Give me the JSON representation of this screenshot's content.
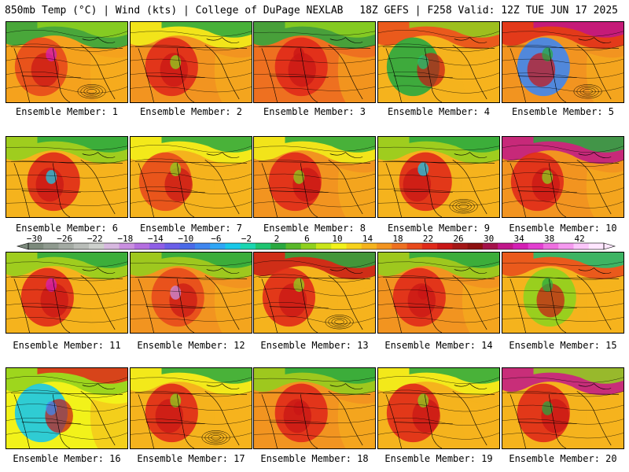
{
  "header": {
    "left": "850mb Temp (°C) | Wind (kts) | College of DuPage NEXLAB",
    "right": "18Z GEFS | F258 Valid: 12Z TUE JUN 17 2025"
  },
  "colorbar": {
    "labels": [
      "-30",
      "-26",
      "-22",
      "-18",
      "-14",
      "-10",
      "-6",
      "-2",
      "2",
      "6",
      "10",
      "14",
      "18",
      "22",
      "26",
      "30",
      "34",
      "38",
      "42"
    ],
    "colors": [
      "#7c8a7c",
      "#8f9a8f",
      "#a3aaa3",
      "#b8bcb8",
      "#cdd0cd",
      "#d7b8e0",
      "#c98fe0",
      "#b46ee0",
      "#8f5fe6",
      "#6a5fe8",
      "#4a6ae8",
      "#3f86ef",
      "#2fa6f5",
      "#19c8e8",
      "#1ad6b0",
      "#1ec470",
      "#2aa840",
      "#59b82a",
      "#8fd11f",
      "#c9e51a",
      "#f2f21a",
      "#f7d21c",
      "#f5b31d",
      "#f29420",
      "#ee7020",
      "#e84a1c",
      "#e02a1a",
      "#c81616",
      "#a41616",
      "#8c1010",
      "#a4124a",
      "#c0168a",
      "#d41fb4",
      "#e23fd0",
      "#ee6fe0",
      "#f59af0",
      "#fbc6fa",
      "#ffe6ff"
    ]
  },
  "panels": [
    {
      "label": "Ensemble Member: 1",
      "base": "#f5a21d",
      "accents": [
        "#e84a1c",
        "#d41fb4",
        "#8fd11f",
        "#2aa840"
      ]
    },
    {
      "label": "Ensemble Member: 2",
      "base": "#f29420",
      "accents": [
        "#e02a1a",
        "#8fd11f",
        "#2aa840",
        "#f2f21a"
      ]
    },
    {
      "label": "Ensemble Member: 3",
      "base": "#ee7020",
      "accents": [
        "#e02a1a",
        "#c81616",
        "#8fd11f",
        "#2aa840"
      ]
    },
    {
      "label": "Ensemble Member: 4",
      "base": "#f5b31d",
      "accents": [
        "#2aa840",
        "#1ec470",
        "#8fd11f",
        "#e84a1c"
      ]
    },
    {
      "label": "Ensemble Member: 5",
      "base": "#f29420",
      "accents": [
        "#3f86ef",
        "#2aa840",
        "#c0168a",
        "#e02a1a"
      ]
    },
    {
      "label": "Ensemble Member: 6",
      "base": "#f5b31d",
      "accents": [
        "#e02a1a",
        "#19c8e8",
        "#2aa840",
        "#8fd11f"
      ]
    },
    {
      "label": "Ensemble Member: 7",
      "base": "#f5b31d",
      "accents": [
        "#e84a1c",
        "#8fd11f",
        "#2aa840",
        "#f2f21a"
      ]
    },
    {
      "label": "Ensemble Member: 8",
      "base": "#f29420",
      "accents": [
        "#e02a1a",
        "#8fd11f",
        "#2aa840",
        "#f2f21a"
      ]
    },
    {
      "label": "Ensemble Member: 9",
      "base": "#f5b31d",
      "accents": [
        "#e02a1a",
        "#19c8e8",
        "#2aa840",
        "#8fd11f"
      ]
    },
    {
      "label": "Ensemble Member: 10",
      "base": "#f29420",
      "accents": [
        "#e02a1a",
        "#8fd11f",
        "#2aa840",
        "#c0168a"
      ]
    },
    {
      "label": "Ensemble Member: 11",
      "base": "#f5b31d",
      "accents": [
        "#e02a1a",
        "#d41fb4",
        "#2aa840",
        "#8fd11f"
      ]
    },
    {
      "label": "Ensemble Member: 12",
      "base": "#f29420",
      "accents": [
        "#e84a1c",
        "#c98fe0",
        "#2aa840",
        "#8fd11f"
      ]
    },
    {
      "label": "Ensemble Member: 13",
      "base": "#f5b31d",
      "accents": [
        "#e02a1a",
        "#8fd11f",
        "#2aa840",
        "#c81616"
      ]
    },
    {
      "label": "Ensemble Member: 14",
      "base": "#f29420",
      "accents": [
        "#e02a1a",
        "#c81616",
        "#2aa840",
        "#8fd11f"
      ]
    },
    {
      "label": "Ensemble Member: 15",
      "base": "#f5b31d",
      "accents": [
        "#8fd11f",
        "#2aa840",
        "#1ec470",
        "#e84a1c"
      ]
    },
    {
      "label": "Ensemble Member: 16",
      "base": "#f2f21a",
      "accents": [
        "#19c8e8",
        "#3f86ef",
        "#e02a1a",
        "#8fd11f"
      ]
    },
    {
      "label": "Ensemble Member: 17",
      "base": "#f5b31d",
      "accents": [
        "#e02a1a",
        "#8fd11f",
        "#2aa840",
        "#f2f21a"
      ]
    },
    {
      "label": "Ensemble Member: 18",
      "base": "#f29420",
      "accents": [
        "#e02a1a",
        "#c81616",
        "#2aa840",
        "#8fd11f"
      ]
    },
    {
      "label": "Ensemble Member: 19",
      "base": "#f5b31d",
      "accents": [
        "#e02a1a",
        "#8fd11f",
        "#2aa840",
        "#f2f21a"
      ]
    },
    {
      "label": "Ensemble Member: 20",
      "base": "#f5b31d",
      "accents": [
        "#e02a1a",
        "#2aa840",
        "#8fd11f",
        "#c0168a"
      ]
    }
  ]
}
